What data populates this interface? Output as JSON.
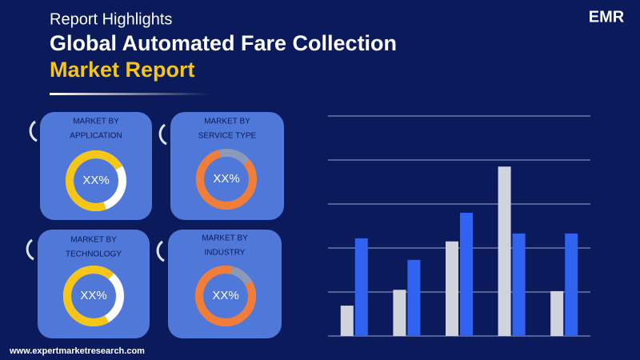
{
  "header": {
    "subtitle": "Report Highlights",
    "title_line1": "Global Automated Fare Collection",
    "title_line2": "Market Report"
  },
  "logo": {
    "text": "EMR"
  },
  "cards": [
    {
      "label_line1": "MARKET BY",
      "label_line2": "APPLICATION",
      "value": "XX%"
    },
    {
      "label_line1": "MARKET BY",
      "label_line2": "SERVICE TYPE",
      "value": "XX%"
    },
    {
      "label_line1": "MARKET BY",
      "label_line2": "TECHNOLOGY",
      "value": "XX%"
    },
    {
      "label_line1": "MARKET BY",
      "label_line2": "INDUSTRY",
      "value": "XX%"
    }
  ],
  "footer": {
    "url": "www.expertmarketresearch.com"
  },
  "chart_data": {
    "type": "bar",
    "categories": [
      null,
      null,
      null,
      null,
      null
    ],
    "series": [
      {
        "color": "#d0d3dc",
        "values": [
          0.69,
          1.05,
          2.15,
          3.85,
          1.02
        ]
      },
      {
        "color": "#2f63f0",
        "values": [
          2.22,
          1.73,
          2.8,
          2.33,
          2.33
        ]
      }
    ],
    "ylim": [
      0,
      5
    ],
    "yticks": [
      0,
      1,
      2,
      3,
      4,
      5
    ],
    "grid": true
  }
}
